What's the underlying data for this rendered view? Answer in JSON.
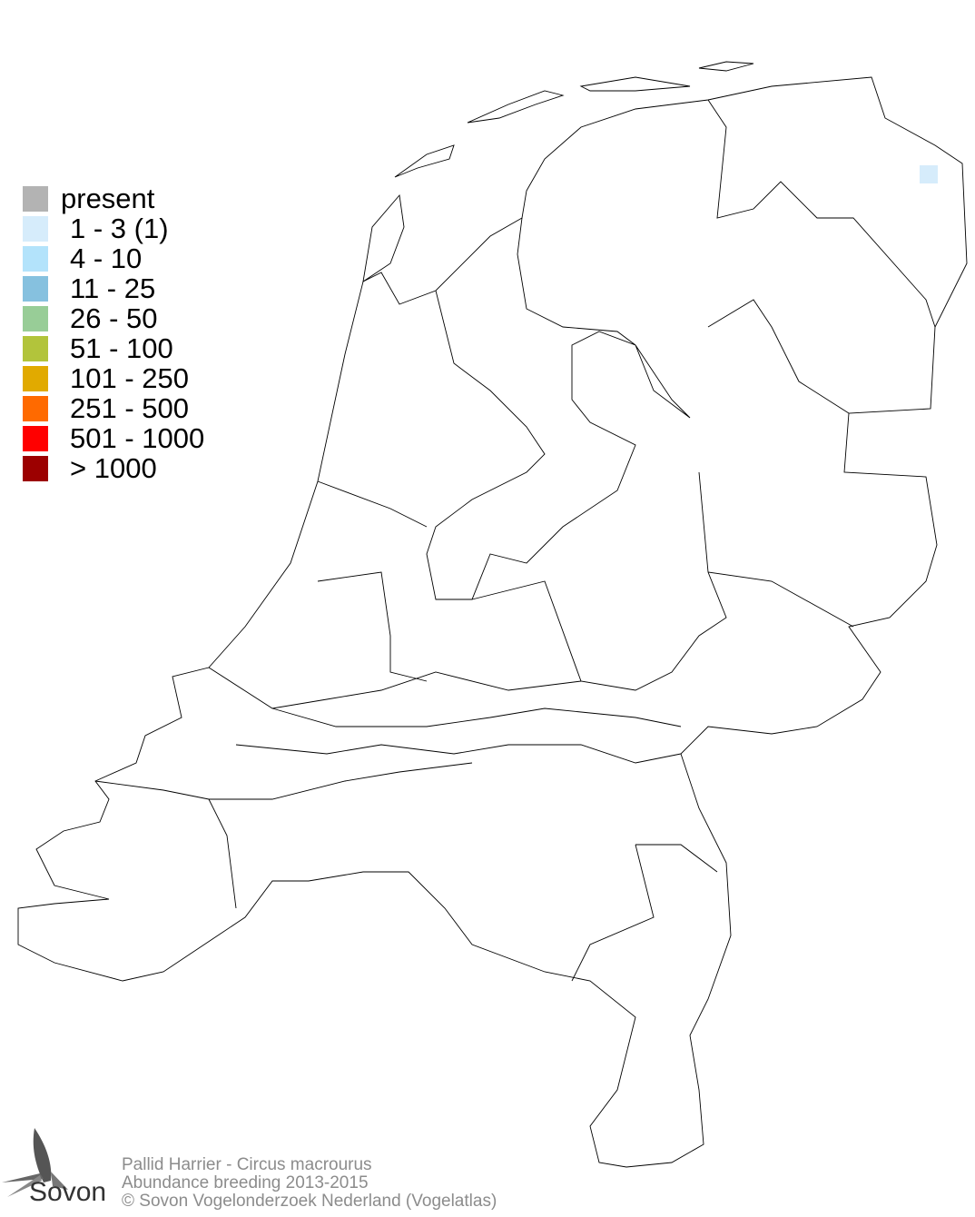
{
  "legend": {
    "items": [
      {
        "label": "present",
        "color": "#b3b3b3"
      },
      {
        "label": "1 - 3 (1)",
        "color": "#d6ecfb"
      },
      {
        "label": "4 - 10",
        "color": "#b3e3fb"
      },
      {
        "label": "11 - 25",
        "color": "#86c1df"
      },
      {
        "label": "26 - 50",
        "color": "#98cd97"
      },
      {
        "label": "51 - 100",
        "color": "#b2c43b"
      },
      {
        "label": "101 - 250",
        "color": "#e1aa00"
      },
      {
        "label": "251 - 500",
        "color": "#ff6a00"
      },
      {
        "label": "501 - 1000",
        "color": "#ff0000"
      },
      {
        "label": "> 1000",
        "color": "#9c0000"
      }
    ]
  },
  "map": {
    "occupied_cells": [
      {
        "category": "1 - 3 (1)",
        "color": "#d6ecfb",
        "region": "north-east Groningen"
      }
    ]
  },
  "footer": {
    "species": "Pallid Harrier - Circus macrourus",
    "subtitle": "Abundance breeding 2013-2015",
    "copyright": "© Sovon Vogelonderzoek Nederland (Vogelatlas)"
  },
  "logo": {
    "text": "Sovon"
  }
}
